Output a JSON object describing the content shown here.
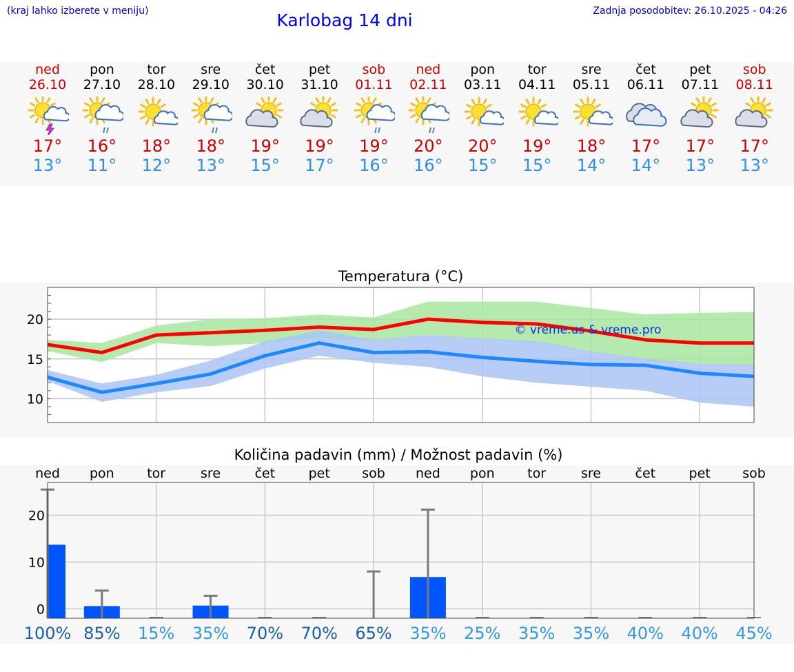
{
  "header": {
    "hint": "(kraj lahko izberete v meniju)",
    "title": "Karlobag 14 dni",
    "updated": "Zadnja posodobitev: 26.10.2025 - 04:26"
  },
  "colors": {
    "weekday": "#000000",
    "weekend": "#cc0000",
    "tmax": "#cc0000",
    "tmin": "#2f8ee8",
    "max_line": "#ff0000",
    "min_line": "#1e88ff",
    "max_band": "#a8e6a0",
    "min_band": "#aac4f5",
    "bar": "#0055ff",
    "prob_dark": "#1a5fa8",
    "prob_light": "#3399dd"
  },
  "days": [
    {
      "name": "ned",
      "date": "26.10",
      "weekend": true,
      "icon": "sun-cloud-thunder-icon",
      "tmax": "17°",
      "tmin": "13°"
    },
    {
      "name": "pon",
      "date": "27.10",
      "weekend": false,
      "icon": "sun-cloud-rain-icon",
      "tmax": "16°",
      "tmin": "11°"
    },
    {
      "name": "tor",
      "date": "28.10",
      "weekend": false,
      "icon": "sun-small-cloud-icon",
      "tmax": "18°",
      "tmin": "12°"
    },
    {
      "name": "sre",
      "date": "29.10",
      "weekend": false,
      "icon": "sun-cloud-rain-icon",
      "tmax": "18°",
      "tmin": "13°"
    },
    {
      "name": "čet",
      "date": "30.10",
      "weekend": false,
      "icon": "sun-cloud-icon",
      "tmax": "19°",
      "tmin": "15°"
    },
    {
      "name": "pet",
      "date": "31.10",
      "weekend": false,
      "icon": "sun-cloud-icon",
      "tmax": "19°",
      "tmin": "17°"
    },
    {
      "name": "sob",
      "date": "01.11",
      "weekend": true,
      "icon": "sun-cloud-rain-icon",
      "tmax": "19°",
      "tmin": "16°"
    },
    {
      "name": "ned",
      "date": "02.11",
      "weekend": true,
      "icon": "sun-cloud-rain-icon",
      "tmax": "20°",
      "tmin": "16°"
    },
    {
      "name": "pon",
      "date": "03.11",
      "weekend": false,
      "icon": "sun-small-cloud-icon",
      "tmax": "20°",
      "tmin": "15°"
    },
    {
      "name": "tor",
      "date": "04.11",
      "weekend": false,
      "icon": "sun-small-cloud-icon",
      "tmax": "19°",
      "tmin": "15°"
    },
    {
      "name": "sre",
      "date": "05.11",
      "weekend": false,
      "icon": "sun-small-cloud-icon",
      "tmax": "18°",
      "tmin": "14°"
    },
    {
      "name": "čet",
      "date": "06.11",
      "weekend": false,
      "icon": "cloudy-icon",
      "tmax": "17°",
      "tmin": "14°"
    },
    {
      "name": "pet",
      "date": "07.11",
      "weekend": false,
      "icon": "sun-cloud-icon",
      "tmax": "17°",
      "tmin": "13°"
    },
    {
      "name": "sob",
      "date": "08.11",
      "weekend": true,
      "icon": "sun-cloud-icon",
      "tmax": "17°",
      "tmin": "13°"
    }
  ],
  "chart_data": [
    {
      "type": "line",
      "title": "Temperatura (°C)",
      "watermark": "© vreme.us & vreme.pro",
      "x_index": [
        0,
        1,
        2,
        3,
        4,
        5,
        6,
        7,
        8,
        9,
        10,
        11,
        12,
        13
      ],
      "ylim": [
        7,
        24
      ],
      "yticks": [
        10,
        15,
        20
      ],
      "grid": true,
      "series": [
        {
          "role": "max",
          "values": [
            16.8,
            15.8,
            18.0,
            18.3,
            18.6,
            19.0,
            18.7,
            20.0,
            19.6,
            19.4,
            18.5,
            17.4,
            17.0,
            17.0
          ],
          "band_low": [
            16.0,
            14.6,
            17.0,
            16.6,
            17.0,
            17.6,
            17.3,
            18.0,
            17.5,
            17.0,
            16.0,
            14.8,
            14.4,
            14.2
          ],
          "band_high": [
            17.4,
            17.0,
            19.2,
            20.0,
            20.1,
            20.6,
            20.2,
            22.2,
            22.2,
            22.2,
            21.4,
            20.6,
            20.8,
            20.9
          ]
        },
        {
          "role": "min",
          "values": [
            12.7,
            10.8,
            11.9,
            13.1,
            15.4,
            17.0,
            15.8,
            15.9,
            15.2,
            14.7,
            14.3,
            14.2,
            13.2,
            12.8
          ],
          "band_low": [
            12.2,
            9.6,
            10.8,
            11.6,
            13.8,
            15.4,
            14.5,
            14.0,
            12.8,
            12.0,
            11.5,
            11.0,
            9.5,
            9.0
          ],
          "band_high": [
            13.6,
            11.9,
            13.0,
            14.8,
            17.2,
            18.6,
            17.4,
            18.0,
            17.6,
            17.2,
            16.0,
            15.0,
            14.4,
            14.3
          ]
        }
      ]
    },
    {
      "type": "bar",
      "title": "Količina padavin (mm) / Možnost padavin (%)",
      "categories": [
        "ned",
        "pon",
        "tor",
        "sre",
        "čet",
        "pet",
        "sob",
        "ned",
        "pon",
        "tor",
        "sre",
        "čet",
        "pet",
        "sob"
      ],
      "ylim": [
        -2,
        27
      ],
      "yticks": [
        0,
        10,
        20
      ],
      "grid": true,
      "values": [
        13.7,
        0.6,
        0.0,
        0.7,
        0.0,
        0.0,
        0.0,
        6.8,
        0.0,
        0.0,
        0.0,
        0.0,
        0.0,
        0.0
      ],
      "whisker_high": [
        25.5,
        3.9,
        0.0,
        2.8,
        0.0,
        0.0,
        8.0,
        21.2,
        0.0,
        0.0,
        0.0,
        0.0,
        0.0,
        0.0
      ],
      "probability": [
        "100%",
        "85%",
        "15%",
        "35%",
        "70%",
        "70%",
        "65%",
        "35%",
        "25%",
        "35%",
        "35%",
        "40%",
        "40%",
        "45%"
      ],
      "probability_dark": [
        true,
        true,
        false,
        false,
        true,
        true,
        true,
        false,
        false,
        false,
        false,
        false,
        false,
        false
      ]
    }
  ]
}
